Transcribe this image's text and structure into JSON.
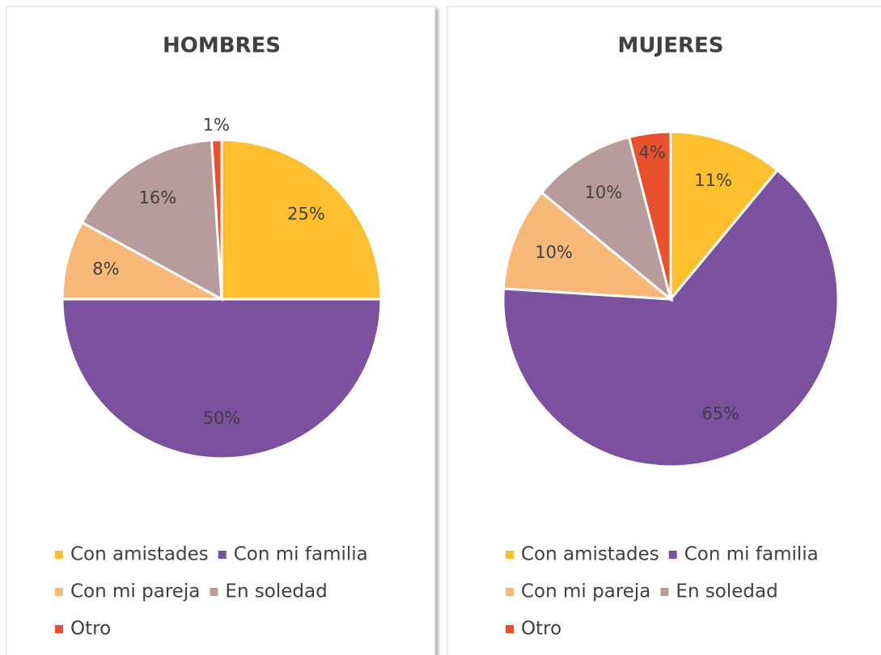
{
  "chart_data": [
    {
      "type": "pie",
      "title": "HOMBRES",
      "categories": [
        "Con amistades",
        "Con mi familia",
        "Con mi pareja",
        "En soledad",
        "Otro"
      ],
      "values": [
        25,
        50,
        8,
        16,
        1
      ],
      "value_labels": [
        "25%",
        "50%",
        "8%",
        "16%",
        "1%"
      ],
      "colors": [
        "#fdbf2d",
        "#7b509f",
        "#f8b878",
        "#b89c9c",
        "#e8502e"
      ],
      "legend": "bottom"
    },
    {
      "type": "pie",
      "title": "MUJERES",
      "categories": [
        "Con amistades",
        "Con mi familia",
        "Con mi pareja",
        "En soledad",
        "Otro"
      ],
      "values": [
        11,
        65,
        10,
        10,
        4
      ],
      "value_labels": [
        "11%",
        "65%",
        "10%",
        "10%",
        "4%"
      ],
      "colors": [
        "#fdbf2d",
        "#7b509f",
        "#f8b878",
        "#b89c9c",
        "#e8502e"
      ],
      "legend": "bottom"
    }
  ]
}
